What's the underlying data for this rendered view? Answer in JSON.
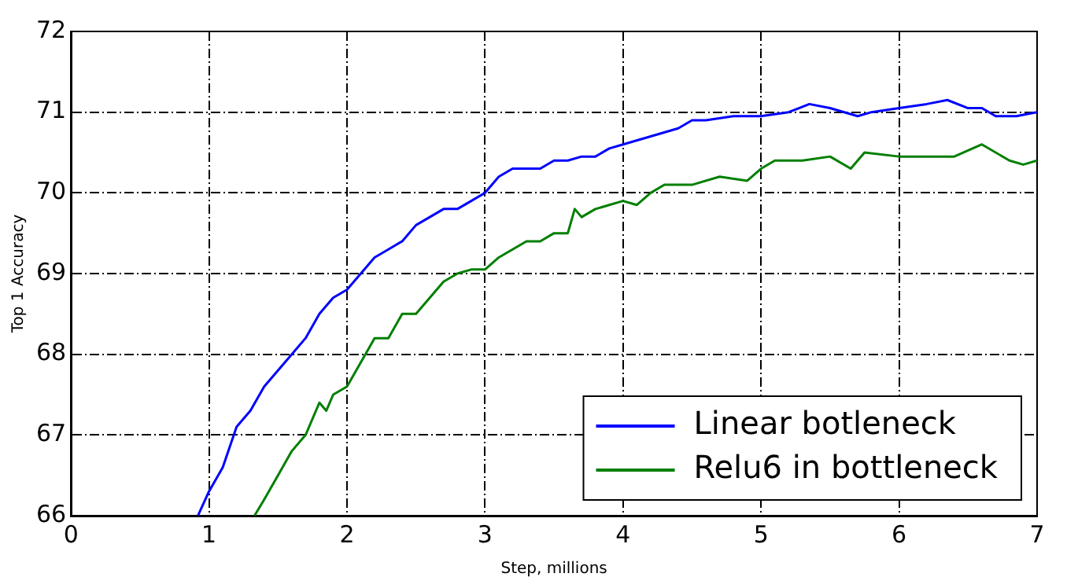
{
  "chart_data": {
    "type": "line",
    "xlabel": "Step, millions",
    "ylabel": "Top 1 Accuracy",
    "xlim": [
      0,
      7
    ],
    "ylim": [
      66,
      72
    ],
    "xticks": [
      0,
      1,
      2,
      3,
      4,
      5,
      6,
      7
    ],
    "yticks": [
      66,
      67,
      68,
      69,
      70,
      71,
      72
    ],
    "grid": true,
    "legend": "bottom right",
    "line_style": "solid",
    "marker": "none",
    "series": [
      {
        "name": "Linear botleneck",
        "color": "#0000ff",
        "x": [
          0.92,
          1.0,
          1.1,
          1.2,
          1.3,
          1.4,
          1.5,
          1.6,
          1.7,
          1.8,
          1.9,
          2.0,
          2.1,
          2.2,
          2.3,
          2.4,
          2.5,
          2.6,
          2.7,
          2.8,
          2.9,
          3.0,
          3.1,
          3.2,
          3.3,
          3.4,
          3.5,
          3.6,
          3.7,
          3.8,
          3.9,
          4.0,
          4.2,
          4.4,
          4.5,
          4.6,
          4.8,
          5.0,
          5.2,
          5.35,
          5.5,
          5.7,
          5.8,
          6.0,
          6.2,
          6.35,
          6.5,
          6.6,
          6.7,
          6.85,
          7.0
        ],
        "values": [
          66.0,
          66.3,
          66.6,
          67.1,
          67.3,
          67.6,
          67.8,
          68.0,
          68.2,
          68.5,
          68.7,
          68.8,
          69.0,
          69.2,
          69.3,
          69.4,
          69.6,
          69.7,
          69.8,
          69.8,
          69.9,
          70.0,
          70.2,
          70.3,
          70.3,
          70.3,
          70.4,
          70.4,
          70.45,
          70.45,
          70.55,
          70.6,
          70.7,
          70.8,
          70.9,
          70.9,
          70.95,
          70.95,
          71.0,
          71.1,
          71.05,
          70.95,
          71.0,
          71.05,
          71.1,
          71.15,
          71.05,
          71.05,
          70.95,
          70.95,
          71.0
        ]
      },
      {
        "name": "Relu6 in bottleneck",
        "color": "#007f00",
        "x": [
          1.33,
          1.4,
          1.5,
          1.6,
          1.7,
          1.8,
          1.85,
          1.9,
          2.0,
          2.1,
          2.2,
          2.3,
          2.4,
          2.5,
          2.6,
          2.7,
          2.8,
          2.9,
          3.0,
          3.1,
          3.2,
          3.3,
          3.4,
          3.5,
          3.6,
          3.65,
          3.7,
          3.8,
          3.9,
          4.0,
          4.1,
          4.2,
          4.3,
          4.5,
          4.7,
          4.9,
          5.0,
          5.1,
          5.3,
          5.5,
          5.65,
          5.75,
          6.0,
          6.2,
          6.4,
          6.6,
          6.8,
          6.9,
          7.0
        ],
        "values": [
          66.0,
          66.2,
          66.5,
          66.8,
          67.0,
          67.4,
          67.3,
          67.5,
          67.6,
          67.9,
          68.2,
          68.2,
          68.5,
          68.5,
          68.7,
          68.9,
          69.0,
          69.05,
          69.05,
          69.2,
          69.3,
          69.4,
          69.4,
          69.5,
          69.5,
          69.8,
          69.7,
          69.8,
          69.85,
          69.9,
          69.85,
          70.0,
          70.1,
          70.1,
          70.2,
          70.15,
          70.3,
          70.4,
          70.4,
          70.45,
          70.3,
          70.5,
          70.45,
          70.45,
          70.45,
          70.6,
          70.4,
          70.35,
          70.4
        ]
      }
    ]
  }
}
